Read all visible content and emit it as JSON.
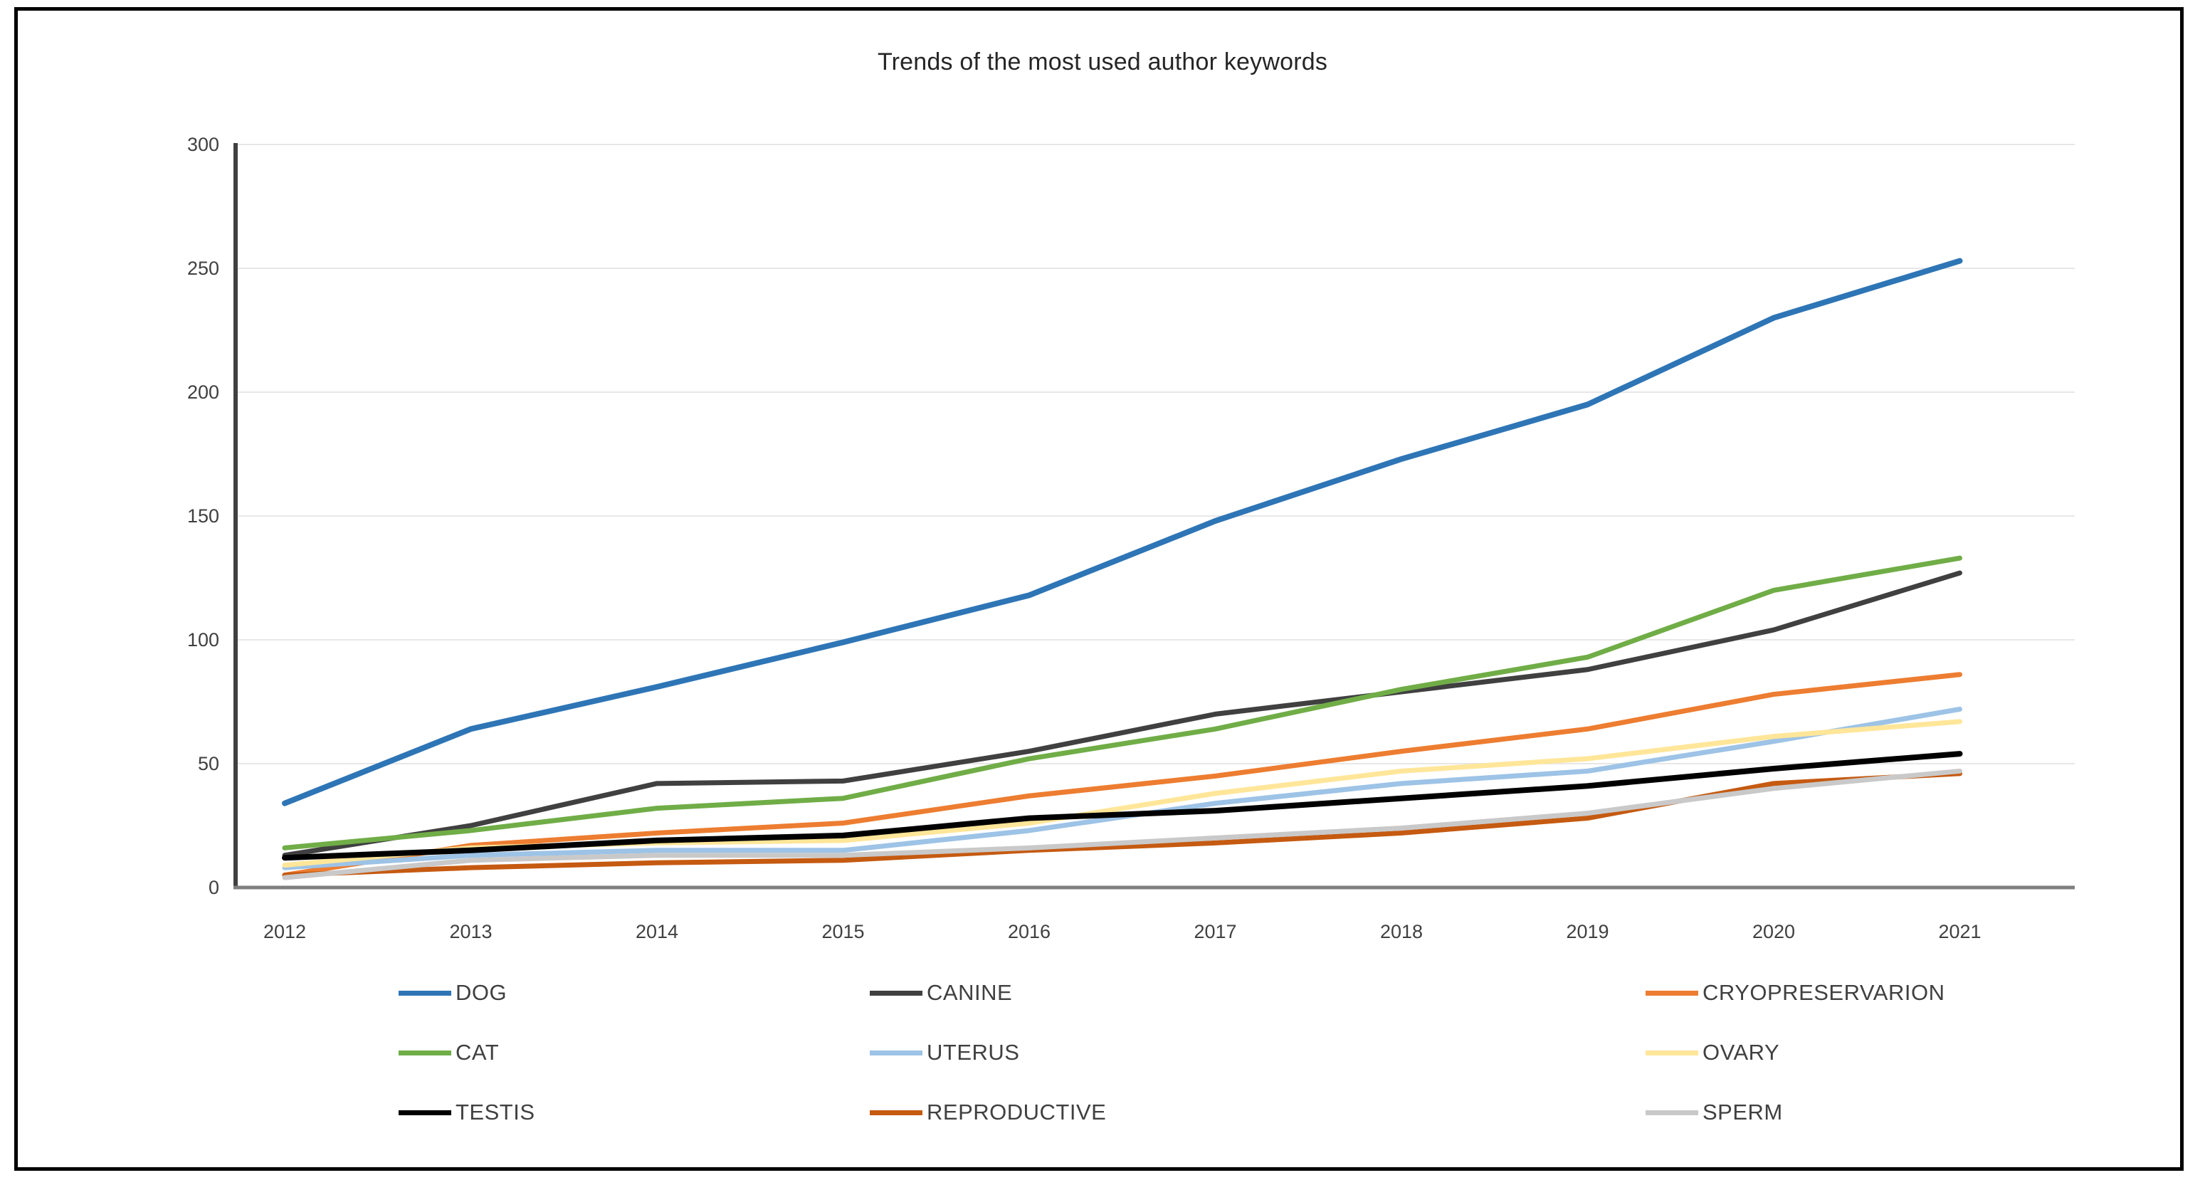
{
  "page": {
    "background": "#ffffff",
    "frame_border_color": "#000000"
  },
  "chart_data": {
    "type": "line",
    "title": "Trends of the most used author keywords",
    "x": [
      2012,
      2013,
      2014,
      2015,
      2016,
      2017,
      2018,
      2019,
      2020,
      2021
    ],
    "xlabel": "",
    "ylabel": "",
    "ylim": [
      0,
      300
    ],
    "y_ticks": [
      0,
      50,
      100,
      150,
      200,
      250,
      300
    ],
    "grid": "horizontal-only",
    "legend_position": "bottom-3-columns",
    "axis_color": "#595959",
    "gridline_color": "#e7e7e7",
    "tick_label_color": "#404040",
    "series": [
      {
        "name": "DOG",
        "color": "#2e75b6",
        "width": 8,
        "values": [
          34,
          64,
          81,
          99,
          118,
          148,
          173,
          195,
          230,
          253
        ]
      },
      {
        "name": "CANINE",
        "color": "#404040",
        "width": 7,
        "values": [
          13,
          25,
          42,
          43,
          55,
          70,
          79,
          88,
          104,
          127
        ]
      },
      {
        "name": "CRYOPRESERVARION",
        "color": "#ed7d31",
        "width": 7,
        "values": [
          5,
          17,
          22,
          26,
          37,
          45,
          55,
          64,
          78,
          86
        ]
      },
      {
        "name": "CAT",
        "color": "#70ad47",
        "width": 7,
        "values": [
          16,
          23,
          32,
          36,
          52,
          64,
          80,
          93,
          120,
          133
        ]
      },
      {
        "name": "UTERUS",
        "color": "#9dc3e6",
        "width": 7,
        "values": [
          8,
          13,
          15,
          15,
          23,
          34,
          42,
          47,
          59,
          72
        ]
      },
      {
        "name": "OVARY",
        "color": "#ffe699",
        "width": 7,
        "values": [
          9,
          16,
          18,
          19,
          26,
          38,
          47,
          52,
          61,
          67
        ]
      },
      {
        "name": "TESTIS",
        "color": "#000000",
        "width": 8,
        "values": [
          12,
          15,
          19,
          21,
          28,
          31,
          36,
          41,
          48,
          54
        ]
      },
      {
        "name": "REPRODUCTIVE",
        "color": "#c55a11",
        "width": 7,
        "values": [
          5,
          8,
          10,
          11,
          15,
          18,
          22,
          28,
          42,
          46
        ]
      },
      {
        "name": "SPERM",
        "color": "#c9c9c9",
        "width": 7,
        "values": [
          4,
          11,
          13,
          13,
          16,
          20,
          24,
          30,
          40,
          47
        ]
      }
    ]
  }
}
